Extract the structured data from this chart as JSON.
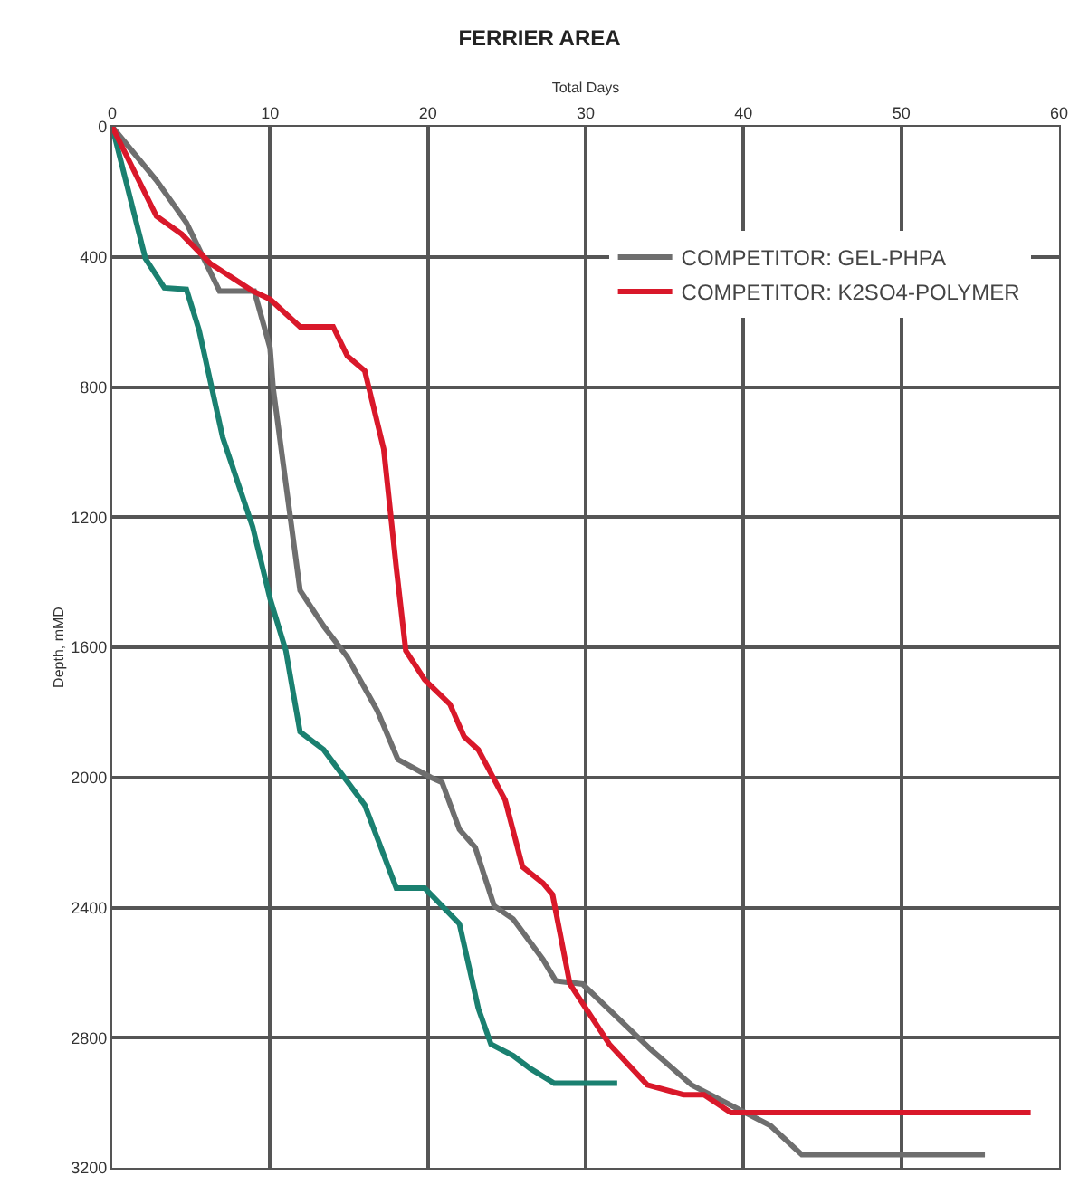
{
  "chart_data": {
    "type": "line",
    "title": "FERRIER AREA",
    "xlabel": "Total Days",
    "ylabel": "Depth, mMD",
    "xlim": [
      0,
      60
    ],
    "xticks": [
      0,
      10,
      20,
      30,
      40,
      50,
      60
    ],
    "ylim": [
      3200,
      0
    ],
    "yticks": [
      0,
      400,
      800,
      1200,
      1600,
      2000,
      2400,
      2800,
      3200
    ],
    "grid": true,
    "legend": "top right",
    "line_style": "solid",
    "marker": "none",
    "series": [
      {
        "color": "#1a8070",
        "x": [
          0,
          2.1,
          3.3,
          4.7,
          5.5,
          7,
          8.9,
          10,
          11,
          11.9,
          13.4,
          16,
          18,
          19.8,
          22,
          23.2,
          24,
          25.4,
          26.5,
          28,
          32
        ],
        "values": [
          0,
          405,
          495,
          500,
          625,
          955,
          1230,
          1450,
          1610,
          1860,
          1915,
          2085,
          2340,
          2340,
          2450,
          2710,
          2820,
          2855,
          2895,
          2940,
          2940
        ]
      },
      {
        "name": "COMPETITOR: GEL-PHPA",
        "color": "#6e6e6e",
        "x": [
          0,
          2.8,
          4.7,
          6.8,
          9,
          10,
          10.2,
          11.9,
          13.4,
          14.9,
          16.8,
          18.1,
          20.2,
          20.9,
          22,
          23,
          24.2,
          25.4,
          27.3,
          28.1,
          29.8,
          34.1,
          36.7,
          41.7,
          43.7,
          55.3
        ],
        "values": [
          0,
          165,
          295,
          505,
          505,
          680,
          805,
          1425,
          1535,
          1630,
          1795,
          1945,
          2000,
          2015,
          2160,
          2215,
          2395,
          2435,
          2560,
          2625,
          2635,
          2835,
          2945,
          3070,
          3160,
          3160
        ]
      },
      {
        "name": "COMPETITOR: K2SO4-POLYMER",
        "color": "#d9182a",
        "x": [
          0,
          2.8,
          4.4,
          6.2,
          8.9,
          10,
          11.9,
          14,
          14.9,
          16,
          17.2,
          18,
          18.6,
          19.8,
          21.4,
          22.3,
          23.2,
          24.9,
          26,
          27.3,
          27.9,
          29,
          31.5,
          33.9,
          36.2,
          37.5,
          39.2,
          58.2
        ],
        "values": [
          0,
          275,
          330,
          420,
          505,
          530,
          615,
          615,
          705,
          750,
          990,
          1355,
          1610,
          1700,
          1775,
          1875,
          1915,
          2070,
          2275,
          2325,
          2360,
          2635,
          2820,
          2945,
          2975,
          2975,
          3030,
          3030
        ]
      }
    ]
  }
}
